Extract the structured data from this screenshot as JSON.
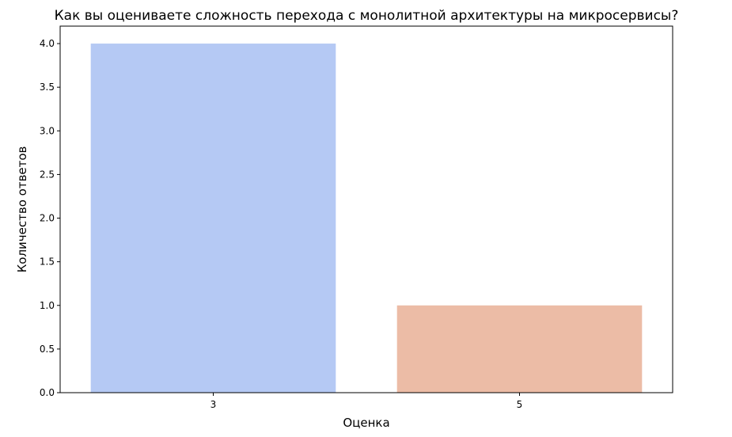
{
  "chart_data": {
    "type": "bar",
    "title": "Как вы оцениваете сложность перехода с монолитной архитектуры на микросервисы?",
    "xlabel": "Оценка",
    "ylabel": "Количество ответов",
    "categories": [
      "3",
      "5"
    ],
    "values": [
      4,
      1
    ],
    "colors": [
      "#b5c9f4",
      "#ecbca6"
    ],
    "ylim": [
      0,
      4.2
    ],
    "yticks": [
      0.0,
      0.5,
      1.0,
      1.5,
      2.0,
      2.5,
      3.0,
      3.5,
      4.0
    ],
    "grid": false,
    "legend": "none"
  }
}
